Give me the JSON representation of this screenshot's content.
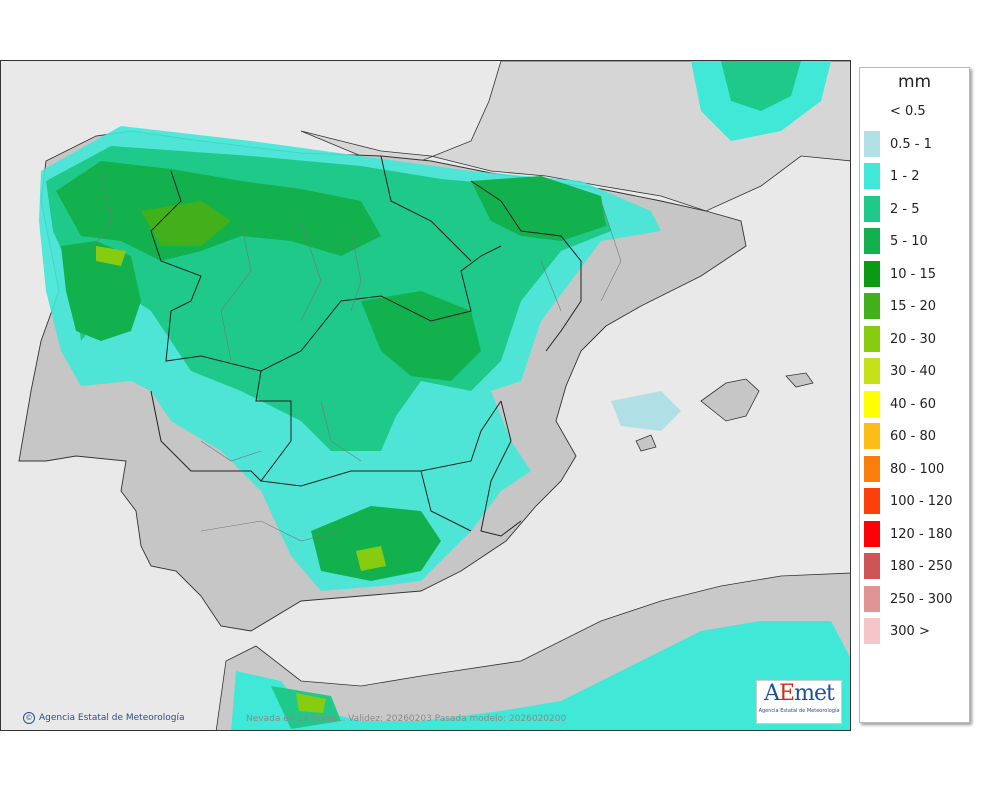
{
  "map": {
    "credit": "Agencia Estatal de Meteorología",
    "footer": "Nevada en 24 horas... Validez: 20260203 Pasada modelo: 2026020200",
    "logo_text": "AEmet",
    "logo_subtitle": "Agencia Estatal de Meteorología",
    "colors": {
      "sea": "#e9e9e9",
      "land": "#c9c9c9",
      "border": "#222222"
    }
  },
  "legend": {
    "unit": "mm",
    "items": [
      {
        "label": "< 0.5",
        "color": ""
      },
      {
        "label": "0.5 - 1",
        "color": "#b0dfe5"
      },
      {
        "label": "1 - 2",
        "color": "#40e8d8"
      },
      {
        "label": "2 - 5",
        "color": "#1ec98a"
      },
      {
        "label": "5 - 10",
        "color": "#13b14d"
      },
      {
        "label": "10 - 15",
        "color": "#0a9a14"
      },
      {
        "label": "15 - 20",
        "color": "#41b01a"
      },
      {
        "label": "20 - 30",
        "color": "#88cc10"
      },
      {
        "label": "30 - 40",
        "color": "#c6e01a"
      },
      {
        "label": "40 - 60",
        "color": "#ffff00"
      },
      {
        "label": "60 - 80",
        "color": "#fbbd16"
      },
      {
        "label": "80 - 100",
        "color": "#fb7d0c"
      },
      {
        "label": "100 - 120",
        "color": "#fe3f0a"
      },
      {
        "label": "120 - 180",
        "color": "#fe0006"
      },
      {
        "label": "180 - 250",
        "color": "#ce5455"
      },
      {
        "label": "250 - 300",
        "color": "#e19393"
      },
      {
        "label": "300 >",
        "color": "#f4c7c6"
      }
    ]
  }
}
